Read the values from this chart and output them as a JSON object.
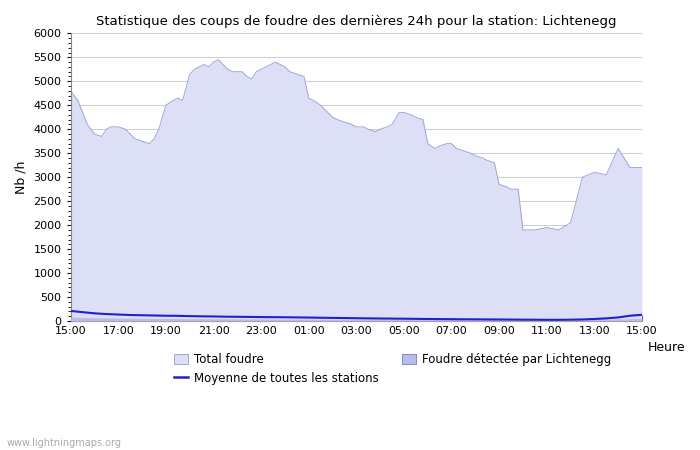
{
  "title": "Statistique des coups de foudre des dernières 24h pour la station: Lichtenegg",
  "xlabel": "Heure",
  "ylabel": "Nb /h",
  "ylim": [
    0,
    6000
  ],
  "yticks": [
    0,
    500,
    1000,
    1500,
    2000,
    2500,
    3000,
    3500,
    4000,
    4500,
    5000,
    5500,
    6000
  ],
  "xtick_labels": [
    "15:00",
    "17:00",
    "19:00",
    "21:00",
    "23:00",
    "01:00",
    "03:00",
    "05:00",
    "07:00",
    "09:00",
    "11:00",
    "13:00",
    "15:00"
  ],
  "xtick_positions": [
    0,
    2,
    4,
    6,
    8,
    10,
    12,
    14,
    16,
    18,
    20,
    22,
    24
  ],
  "background_color": "#ffffff",
  "grid_color": "#cccccc",
  "fill_color_total": "#dcdff5",
  "fill_color_detected": "#b8bce8",
  "line_color_total_border": "#a0a4d8",
  "line_color_moyenne": "#2020cc",
  "watermark": "www.lightningmaps.org",
  "legend_total": "Total foudre",
  "legend_moyenne": "Moyenne de toutes les stations",
  "legend_detected": "Foudre détectée par Lichtenegg",
  "total_x": [
    0,
    0.3,
    0.5,
    0.7,
    1.0,
    1.3,
    1.5,
    1.7,
    2.0,
    2.3,
    2.5,
    2.7,
    3.0,
    3.3,
    3.5,
    3.7,
    4.0,
    4.3,
    4.5,
    4.7,
    5.0,
    5.2,
    5.4,
    5.6,
    5.8,
    6.0,
    6.2,
    6.4,
    6.6,
    6.8,
    7.0,
    7.2,
    7.4,
    7.6,
    7.8,
    8.0,
    8.2,
    8.4,
    8.6,
    8.8,
    9.0,
    9.2,
    9.5,
    9.8,
    10.0,
    10.2,
    10.5,
    10.8,
    11.0,
    11.2,
    11.5,
    11.8,
    12.0,
    12.3,
    12.5,
    12.8,
    13.0,
    13.3,
    13.5,
    13.8,
    14.0,
    14.3,
    14.5,
    14.8,
    15.0,
    15.3,
    15.5,
    15.8,
    16.0,
    16.2,
    16.5,
    16.8,
    17.0,
    17.3,
    17.5,
    17.8,
    18.0,
    18.3,
    18.5,
    18.8,
    19.0,
    19.5,
    20.0,
    20.5,
    21.0,
    21.5,
    22.0,
    22.5,
    23.0,
    23.5,
    24.0
  ],
  "total_y": [
    4800,
    4600,
    4350,
    4100,
    3900,
    3850,
    4000,
    4050,
    4050,
    4000,
    3900,
    3800,
    3750,
    3700,
    3800,
    4000,
    4500,
    4600,
    4650,
    4600,
    5150,
    5250,
    5300,
    5350,
    5300,
    5400,
    5450,
    5350,
    5250,
    5200,
    5200,
    5200,
    5100,
    5050,
    5200,
    5250,
    5300,
    5350,
    5400,
    5350,
    5300,
    5200,
    5150,
    5100,
    4650,
    4600,
    4500,
    4350,
    4250,
    4200,
    4150,
    4100,
    4050,
    4050,
    4000,
    3950,
    4000,
    4050,
    4100,
    4350,
    4350,
    4300,
    4250,
    4200,
    3700,
    3600,
    3650,
    3700,
    3700,
    3600,
    3550,
    3500,
    3450,
    3400,
    3350,
    3300,
    2850,
    2800,
    2750,
    2750,
    1900,
    1900,
    1950,
    1900,
    2050,
    3000,
    3100,
    3050,
    3600,
    3200,
    3200
  ],
  "moyenne_x": [
    0,
    0.3,
    0.7,
    1.0,
    1.5,
    2.0,
    2.5,
    3.0,
    3.5,
    4.0,
    4.5,
    5.0,
    5.5,
    6.0,
    6.5,
    7.0,
    7.5,
    8.0,
    8.5,
    9.0,
    9.5,
    10.0,
    10.5,
    11.0,
    11.5,
    12.0,
    12.5,
    13.0,
    13.5,
    14.0,
    14.5,
    15.0,
    15.5,
    16.0,
    16.5,
    17.0,
    17.5,
    18.0,
    18.5,
    19.0,
    19.5,
    20.0,
    20.5,
    21.0,
    21.5,
    22.0,
    22.5,
    23.0,
    23.5,
    24.0
  ],
  "moyenne_y": [
    210,
    195,
    175,
    160,
    145,
    135,
    125,
    120,
    115,
    110,
    108,
    102,
    98,
    95,
    90,
    88,
    85,
    82,
    80,
    78,
    75,
    72,
    68,
    65,
    62,
    58,
    55,
    52,
    50,
    48,
    45,
    42,
    40,
    38,
    36,
    35,
    33,
    32,
    30,
    28,
    27,
    25,
    25,
    28,
    32,
    42,
    55,
    75,
    110,
    130
  ],
  "detected_x": [
    0,
    0.5,
    1.0,
    2.0,
    3.0,
    4.0,
    5.0,
    6.0,
    7.0,
    8.0,
    9.0,
    10.0,
    11.0,
    12.0,
    13.0,
    14.0,
    15.0,
    16.0,
    17.0,
    18.0,
    19.0,
    20.0,
    21.0,
    22.0,
    23.0,
    24.0
  ],
  "detected_y": [
    80,
    75,
    68,
    60,
    55,
    52,
    50,
    48,
    45,
    42,
    40,
    38,
    36,
    35,
    33,
    32,
    30,
    28,
    27,
    26,
    25,
    25,
    28,
    32,
    42,
    55
  ]
}
